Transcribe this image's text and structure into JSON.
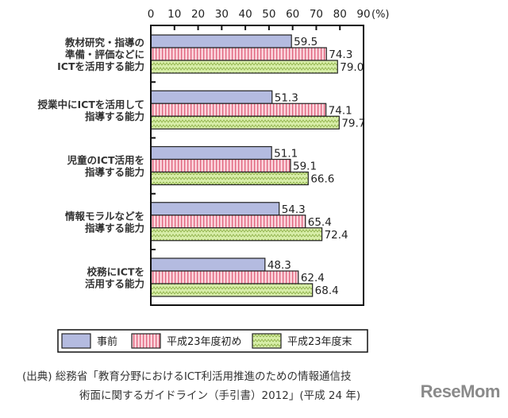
{
  "chart_data": {
    "type": "bar",
    "orientation": "horizontal",
    "unit_label": "(%)",
    "xlim": [
      0,
      90
    ],
    "x_ticks": [
      0,
      10,
      20,
      30,
      40,
      50,
      60,
      70,
      80,
      90
    ],
    "categories": [
      [
        "教材研究・指導の",
        "準備・評価などに",
        "ICTを活用する能力"
      ],
      [
        "授業中にICTを活用して",
        "指導する能力"
      ],
      [
        "児童のICT活用を",
        "指導する能力"
      ],
      [
        "情報モラルなどを",
        "指導する能力"
      ],
      [
        "校務にICTを",
        "活用する能力"
      ]
    ],
    "series": [
      {
        "name": "事前",
        "values": [
          59.5,
          51.3,
          51.1,
          54.3,
          48.3
        ],
        "color": "#b4bbe0",
        "pattern": "solid"
      },
      {
        "name": "平成23年度初め",
        "values": [
          74.3,
          74.1,
          59.1,
          65.4,
          62.4
        ],
        "color": "#f7b8c4",
        "pattern": "vertical-stripes"
      },
      {
        "name": "平成23年度末",
        "values": [
          79.0,
          79.7,
          66.6,
          72.4,
          68.4
        ],
        "color": "#cde59a",
        "pattern": "zigzag"
      }
    ],
    "legend_position": "bottom",
    "grid": false
  },
  "source": {
    "line1": "(出典) 総務省「教育分野におけるICT利活用推進のための情報通信技",
    "line2": "術面に関するガイドライン（手引書）2012」(平成 24 年)"
  },
  "watermark": "ReseMom"
}
